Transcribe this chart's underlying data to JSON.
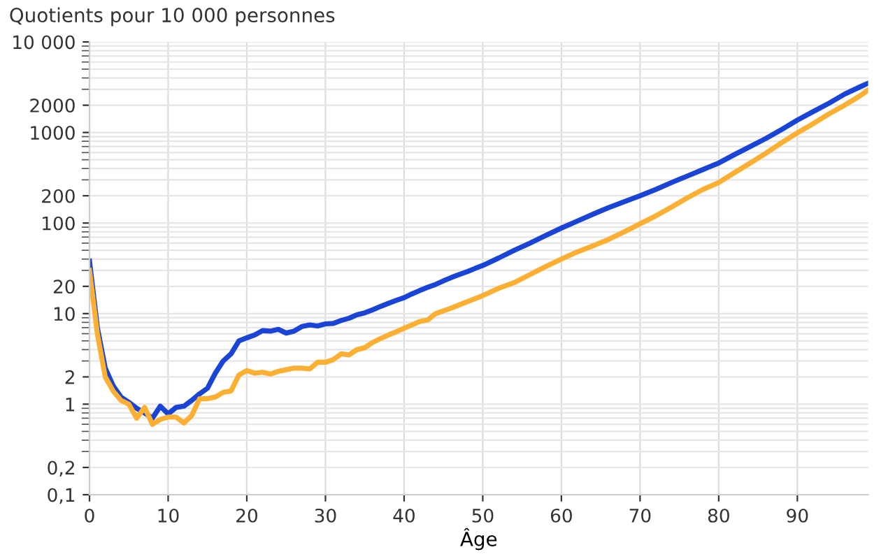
{
  "chart_data": {
    "type": "line",
    "title": "Quotients pour 10 000 personnes",
    "xlabel": "Âge",
    "x": [
      0,
      1,
      2,
      3,
      4,
      5,
      6,
      7,
      8,
      9,
      10,
      11,
      12,
      13,
      14,
      15,
      16,
      17,
      18,
      19,
      20,
      21,
      22,
      23,
      24,
      25,
      26,
      27,
      28,
      29,
      30,
      31,
      32,
      33,
      34,
      35,
      36,
      37,
      38,
      39,
      40,
      41,
      42,
      43,
      44,
      45,
      46,
      47,
      48,
      49,
      50,
      52,
      54,
      56,
      58,
      60,
      62,
      64,
      66,
      68,
      70,
      72,
      74,
      76,
      78,
      80,
      82,
      84,
      86,
      88,
      90,
      92,
      94,
      96,
      98,
      99
    ],
    "series": [
      {
        "color": "#1a44d6",
        "values": [
          38,
          7,
          2.5,
          1.6,
          1.2,
          1.05,
          0.9,
          0.8,
          0.7,
          0.95,
          0.78,
          0.92,
          0.95,
          1.1,
          1.3,
          1.5,
          2.2,
          3.0,
          3.6,
          5.0,
          5.4,
          5.8,
          6.5,
          6.4,
          6.7,
          6.1,
          6.4,
          7.2,
          7.5,
          7.3,
          7.7,
          7.8,
          8.4,
          8.9,
          9.7,
          10.2,
          11,
          12,
          13,
          14,
          15,
          16.5,
          18,
          19.5,
          21,
          23,
          25,
          27,
          29,
          31.5,
          34,
          41,
          50,
          60,
          73,
          88,
          105,
          125,
          148,
          172,
          200,
          235,
          280,
          330,
          390,
          460,
          570,
          700,
          860,
          1080,
          1370,
          1700,
          2100,
          2650,
          3200,
          3500
        ]
      },
      {
        "color": "#fbb034",
        "x": [
          0,
          1,
          2,
          3,
          4,
          5,
          6,
          7,
          8,
          9,
          10,
          11,
          12,
          13,
          14,
          15,
          16,
          17,
          18,
          19,
          20,
          21,
          22,
          23,
          24,
          25,
          26,
          27,
          28,
          29,
          30,
          31,
          32,
          33,
          34,
          35,
          36,
          37,
          38,
          39,
          40,
          41,
          42,
          43,
          44,
          46,
          48,
          50,
          52,
          54,
          56,
          58,
          60,
          62,
          64,
          66,
          68,
          70,
          72,
          74,
          76,
          78,
          80,
          82,
          84,
          86,
          88,
          90,
          92,
          94,
          96,
          98,
          99
        ],
        "values": [
          30,
          6,
          2.0,
          1.4,
          1.1,
          1.0,
          0.7,
          0.92,
          0.6,
          0.68,
          0.72,
          0.72,
          0.62,
          0.75,
          1.15,
          1.15,
          1.2,
          1.35,
          1.4,
          2.1,
          2.35,
          2.2,
          2.25,
          2.15,
          2.3,
          2.4,
          2.5,
          2.5,
          2.45,
          2.9,
          2.9,
          3.1,
          3.6,
          3.5,
          4.0,
          4.2,
          4.8,
          5.3,
          5.8,
          6.3,
          6.9,
          7.5,
          8.2,
          8.5,
          10,
          11.5,
          13.5,
          15.8,
          19,
          22,
          27,
          33,
          40,
          48,
          56,
          66,
          80,
          98,
          120,
          150,
          190,
          235,
          280,
          360,
          460,
          590,
          770,
          990,
          1250,
          1600,
          2000,
          2550,
          2950
        ]
      }
    ],
    "log": "y",
    "xlim": [
      0,
      99
    ],
    "xticks": [
      0,
      10,
      20,
      30,
      40,
      50,
      60,
      70,
      80,
      90
    ],
    "ylim": [
      0.1,
      10000
    ],
    "yticks": [
      {
        "value": 0.1,
        "label": "0,1"
      },
      {
        "value": 0.2,
        "label": "0,2"
      },
      1,
      2,
      10,
      20,
      100,
      200,
      1000,
      2000,
      {
        "value": 10000,
        "label": "10 000"
      }
    ],
    "grid": true,
    "marker": "none",
    "line_style": "solid"
  }
}
